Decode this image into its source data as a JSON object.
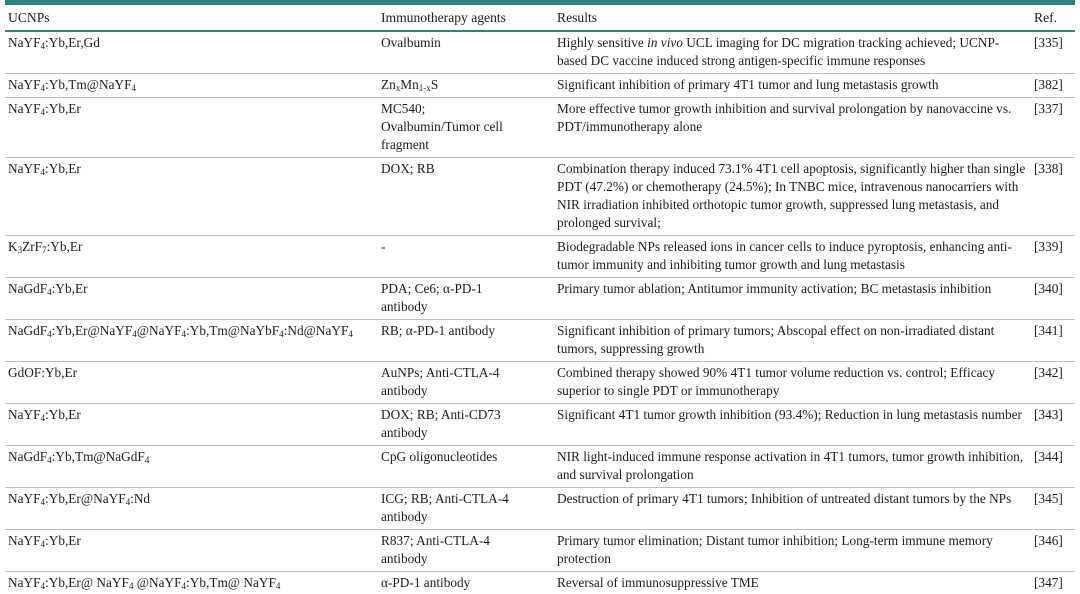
{
  "table": {
    "accent_color": "#2e837a",
    "row_line_color": "#bdbdbd",
    "headers": [
      "UCNPs",
      "Immunotherapy agents",
      "Results",
      "Ref."
    ],
    "rows": [
      {
        "ucnp": "NaYF~4~:Yb,Er,Gd",
        "agents": "Ovalbumin",
        "results": "Highly sensitive *in vivo* UCL imaging for DC migration tracking achieved; UCNP-based DC vaccine induced strong antigen-specific immune responses",
        "ref": "[335]"
      },
      {
        "ucnp": "NaYF~4~:Yb,Tm@NaYF~4~",
        "agents": "Zn~x~Mn~1-x~S",
        "results": "Significant inhibition of primary 4T1 tumor and lung metastasis growth",
        "ref": "[382]"
      },
      {
        "ucnp": "NaYF~4~:Yb,Er",
        "agents": "MC540;\nOvalbumin/Tumor cell\nfragment",
        "results": "More effective tumor growth inhibition and survival prolongation by nanovaccine vs. PDT/immunotherapy alone",
        "ref": "[337]"
      },
      {
        "ucnp": "NaYF~4~:Yb,Er",
        "agents": "DOX; RB",
        "results": "Combination therapy induced 73.1% 4T1 cell apoptosis, significantly higher than single PDT (47.2%) or chemotherapy (24.5%); In TNBC mice, intravenous nanocarriers with NIR irradiation inhibited orthotopic tumor growth, suppressed lung metastasis, and prolonged survival;",
        "ref": "[338]"
      },
      {
        "ucnp": "K~3~ZrF~7~:Yb,Er",
        "agents": "-",
        "results": "Biodegradable NPs released ions in cancer cells to induce pyroptosis, enhancing anti-tumor immunity and inhibiting tumor growth and lung metastasis",
        "ref": "[339]"
      },
      {
        "ucnp": "NaGdF~4~:Yb,Er",
        "agents": "PDA; Ce6; α-PD-1\nantibody",
        "results": "Primary tumor ablation; Antitumor immunity activation; BC metastasis inhibition",
        "ref": "[340]"
      },
      {
        "ucnp": "NaGdF~4~:Yb,Er@NaYF~4~@NaYF~4~:Yb,Tm@NaYbF~4~:Nd@NaYF~4~",
        "agents": "RB; α-PD-1 antibody",
        "results": "Significant inhibition of primary tumors; Abscopal effect on non-irradiated distant tumors, suppressing growth",
        "ref": "[341]"
      },
      {
        "ucnp": "GdOF:Yb,Er",
        "agents": "AuNPs; Anti-CTLA-4\nantibody",
        "results": "Combined therapy showed 90% 4T1 tumor volume reduction vs. control; Efficacy superior to single PDT or immunotherapy",
        "ref": "[342]"
      },
      {
        "ucnp": "NaYF~4~:Yb,Er",
        "agents": "DOX; RB; Anti-CD73\nantibody",
        "results": "Significant 4T1 tumor growth inhibition (93.4%); Reduction in lung metastasis number",
        "ref": "[343]"
      },
      {
        "ucnp": "NaGdF~4~:Yb,Tm@NaGdF~4~",
        "agents": "CpG oligonucleotides",
        "results": "NIR light-induced immune response activation in 4T1 tumors, tumor growth inhibition, and survival prolongation",
        "ref": "[344]"
      },
      {
        "ucnp": "NaYF~4~:Yb,Er@NaYF~4~:Nd",
        "agents": "ICG; RB; Anti-CTLA-4\nantibody",
        "results": "Destruction of primary 4T1 tumors; Inhibition of untreated distant tumors by the NPs",
        "ref": "[345]"
      },
      {
        "ucnp": "NaYF~4~:Yb,Er",
        "agents": "R837; Anti-CTLA-4\nantibody",
        "results": "Primary tumor elimination; Distant tumor inhibition; Long-term immune memory protection",
        "ref": "[346]"
      },
      {
        "ucnp": "NaYF~4~:Yb,Er@ NaYF~4~ @NaYF~4~:Yb,Tm@ NaYF~4~",
        "agents": "α-PD-1 antibody",
        "results": "Reversal of immunosuppressive TME",
        "ref": "[347]"
      }
    ]
  }
}
